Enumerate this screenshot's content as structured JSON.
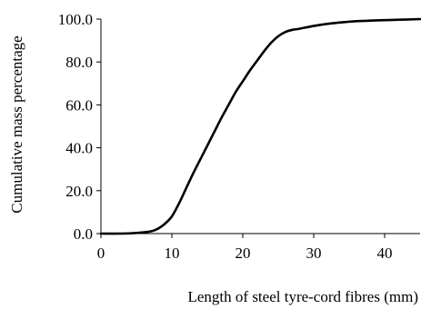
{
  "chart_data": {
    "type": "line",
    "title": "",
    "xlabel": "Length of steel tyre-cord fibres (mm)",
    "ylabel": "Cumulative mass percentage",
    "xlim": [
      0,
      45
    ],
    "ylim": [
      0,
      100
    ],
    "x_ticks": [
      0,
      10,
      20,
      30,
      40
    ],
    "x_tick_labels": [
      "0",
      "10",
      "20",
      "30",
      "40"
    ],
    "y_ticks": [
      0,
      20,
      40,
      60,
      80,
      100
    ],
    "y_tick_labels": [
      "0.0",
      "20.0",
      "40.0",
      "60.0",
      "80.0",
      "100.0"
    ],
    "grid": false,
    "legend": "none",
    "series": [
      {
        "color": "#000000",
        "x": [
          0,
          3,
          5,
          7,
          8,
          9,
          10,
          11,
          12,
          13,
          14,
          15,
          16,
          17,
          18,
          19,
          20,
          21,
          22,
          23,
          24,
          25,
          26,
          27,
          28,
          30,
          32,
          34,
          36,
          38,
          40,
          42,
          45
        ],
        "y": [
          0,
          0,
          0.3,
          1,
          2.2,
          4.5,
          8,
          14,
          21,
          28,
          34.5,
          41,
          47.5,
          54,
          60,
          66,
          71,
          76,
          80.5,
          85,
          89,
          92,
          94,
          95,
          95.5,
          96.8,
          97.8,
          98.5,
          99,
          99.3,
          99.5,
          99.7,
          100
        ]
      }
    ]
  }
}
